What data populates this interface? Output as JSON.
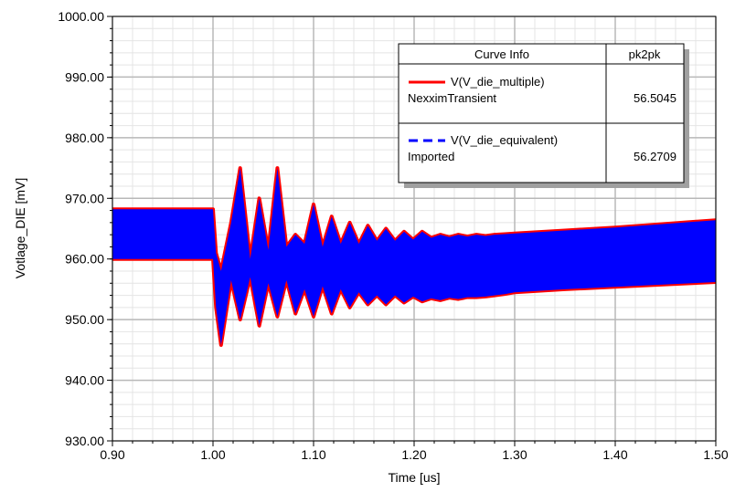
{
  "chart_data": {
    "type": "line",
    "xlabel": "Time [us]",
    "ylabel": "Votlage_DIE [mV]",
    "xlim": [
      0.9,
      1.5
    ],
    "ylim": [
      930.0,
      1000.0
    ],
    "x_ticks": [
      "0.90",
      "1.00",
      "1.10",
      "1.20",
      "1.30",
      "1.40",
      "1.50"
    ],
    "y_ticks": [
      "930.00",
      "940.00",
      "950.00",
      "960.00",
      "970.00",
      "980.00",
      "990.00",
      "1000.00"
    ],
    "grid": true,
    "legend_placement": "top-right",
    "envelope": {
      "x": [
        0.9,
        1.0,
        1.003,
        1.008,
        1.018,
        1.027,
        1.037,
        1.046,
        1.055,
        1.064,
        1.073,
        1.082,
        1.091,
        1.1,
        1.109,
        1.118,
        1.127,
        1.136,
        1.145,
        1.154,
        1.163,
        1.172,
        1.181,
        1.19,
        1.199,
        1.208,
        1.217,
        1.226,
        1.235,
        1.244,
        1.253,
        1.262,
        1.271,
        1.28,
        1.29,
        1.3,
        1.35,
        1.4,
        1.45,
        1.5
      ],
      "upper": [
        968.2,
        968.2,
        961.0,
        958.0,
        966.0,
        975.0,
        960.0,
        970.0,
        961.5,
        975.0,
        962.0,
        964.0,
        962.5,
        969.0,
        962.0,
        967.0,
        962.5,
        966.0,
        962.5,
        965.5,
        963.0,
        965.0,
        963.0,
        964.5,
        963.2,
        964.5,
        963.5,
        964.0,
        963.6,
        964.0,
        963.7,
        964.0,
        963.8,
        964.0,
        964.1,
        964.2,
        964.7,
        965.2,
        965.8,
        966.4
      ],
      "lower": [
        960.0,
        960.0,
        952.0,
        945.8,
        956.5,
        950.0,
        957.0,
        949.0,
        956.0,
        950.5,
        956.5,
        951.0,
        955.0,
        950.5,
        955.5,
        951.0,
        955.0,
        952.0,
        954.5,
        952.5,
        954.0,
        952.5,
        954.0,
        952.8,
        953.8,
        953.0,
        953.5,
        953.2,
        953.6,
        953.4,
        953.7,
        953.7,
        953.8,
        954.0,
        954.2,
        954.5,
        955.0,
        955.4,
        955.8,
        956.2
      ]
    },
    "series": [
      {
        "name": "V(V_die_multiple)",
        "color": "#ff0000",
        "style": "solid",
        "source": "NexximTransient",
        "pk2pk": "56.5045"
      },
      {
        "name": "V(V_die_equivalent)",
        "color": "#0000ff",
        "style": "dashed",
        "source": "Imported",
        "pk2pk": "56.2709"
      }
    ],
    "legend": {
      "col_header": "Curve Info",
      "value_header": "pk2pk"
    }
  }
}
